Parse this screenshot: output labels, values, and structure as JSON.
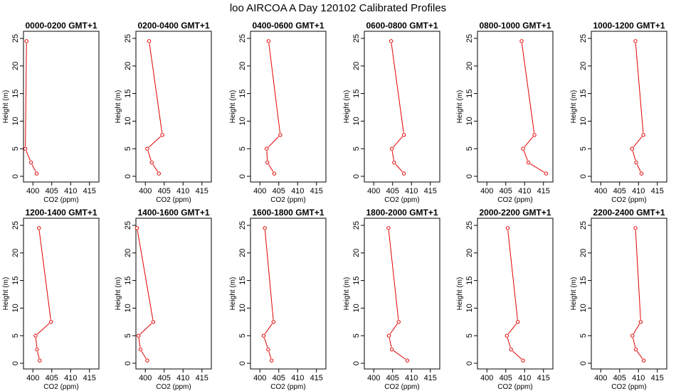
{
  "title": "loo AIRCOA A  Day 120102  Calibrated Profiles",
  "colors": {
    "series": "#e00000",
    "axes": "#000000",
    "background": "#ffffff"
  },
  "chart_data": [
    {
      "type": "line",
      "title": "0000-0200 GMT+1",
      "xlabel": "CO2 (ppm)",
      "ylabel": "Height (m)",
      "xlim": [
        397.5,
        417.5
      ],
      "ylim": [
        0,
        25
      ],
      "xticks": [
        400,
        405,
        410,
        415
      ],
      "yticks": [
        0,
        5,
        10,
        15,
        20,
        25
      ],
      "x": [
        398.3,
        398.0,
        399.5,
        401.0
      ],
      "y": [
        24.5,
        5,
        2.5,
        0.5
      ]
    },
    {
      "type": "line",
      "title": "0200-0400 GMT+1",
      "xlabel": "CO2 (ppm)",
      "ylabel": "Height (m)",
      "xlim": [
        397.5,
        417.5
      ],
      "ylim": [
        0,
        25
      ],
      "xticks": [
        400,
        405,
        410,
        415
      ],
      "yticks": [
        0,
        5,
        10,
        15,
        20,
        25
      ],
      "x": [
        401.0,
        404.5,
        400.5,
        401.7,
        403.6
      ],
      "y": [
        24.5,
        7.5,
        5,
        2.5,
        0.5
      ]
    },
    {
      "type": "line",
      "title": "0400-0600 GMT+1",
      "xlabel": "CO2 (ppm)",
      "ylabel": "Height (m)",
      "xlim": [
        397.5,
        417.5
      ],
      "ylim": [
        0,
        25
      ],
      "xticks": [
        400,
        405,
        410,
        415
      ],
      "yticks": [
        0,
        5,
        10,
        15,
        20,
        25
      ],
      "x": [
        402.3,
        405.4,
        401.8,
        402.0,
        403.8
      ],
      "y": [
        24.5,
        7.5,
        5,
        2.5,
        0.5
      ]
    },
    {
      "type": "line",
      "title": "0600-0800 GMT+1",
      "xlabel": "CO2 (ppm)",
      "ylabel": "Height (m)",
      "xlim": [
        397.5,
        417.5
      ],
      "ylim": [
        0,
        25
      ],
      "xticks": [
        400,
        405,
        410,
        415
      ],
      "yticks": [
        0,
        5,
        10,
        15,
        20,
        25
      ],
      "x": [
        404.6,
        408.0,
        404.8,
        405.4,
        408.0
      ],
      "y": [
        24.5,
        7.5,
        5,
        2.5,
        0.5
      ]
    },
    {
      "type": "line",
      "title": "0800-1000 GMT+1",
      "xlabel": "CO2 (ppm)",
      "ylabel": "Height (m)",
      "xlim": [
        397.5,
        417.5
      ],
      "ylim": [
        0,
        25
      ],
      "xticks": [
        400,
        405,
        410,
        415
      ],
      "yticks": [
        0,
        5,
        10,
        15,
        20,
        25
      ],
      "x": [
        409.2,
        412.6,
        409.6,
        411.0,
        415.7
      ],
      "y": [
        24.5,
        7.5,
        5,
        2.5,
        0.5
      ]
    },
    {
      "type": "line",
      "title": "1000-1200 GMT+1",
      "xlabel": "CO2 (ppm)",
      "ylabel": "Height (m)",
      "xlim": [
        397.5,
        417.5
      ],
      "ylim": [
        0,
        25
      ],
      "xticks": [
        400,
        405,
        410,
        415
      ],
      "yticks": [
        0,
        5,
        10,
        15,
        20,
        25
      ],
      "x": [
        409.2,
        411.3,
        408.3,
        409.4,
        410.8
      ],
      "y": [
        24.5,
        7.5,
        5,
        2.5,
        0.5
      ]
    },
    {
      "type": "line",
      "title": "1200-1400 GMT+1",
      "xlabel": "CO2 (ppm)",
      "ylabel": "Height (m)",
      "xlim": [
        397.5,
        417.5
      ],
      "ylim": [
        0,
        25
      ],
      "xticks": [
        400,
        405,
        410,
        415
      ],
      "yticks": [
        0,
        5,
        10,
        15,
        20,
        25
      ],
      "x": [
        401.6,
        404.8,
        400.7,
        401.1,
        401.8
      ],
      "y": [
        24.5,
        7.5,
        5,
        2.5,
        0.5
      ]
    },
    {
      "type": "line",
      "title": "1400-1600 GMT+1",
      "xlabel": "CO2 (ppm)",
      "ylabel": "Height (m)",
      "xlim": [
        397.5,
        417.5
      ],
      "ylim": [
        0,
        25
      ],
      "xticks": [
        400,
        405,
        410,
        415
      ],
      "yticks": [
        0,
        5,
        10,
        15,
        20,
        25
      ],
      "x": [
        397.8,
        402.1,
        398.2,
        398.7,
        400.5
      ],
      "y": [
        24.5,
        7.5,
        5,
        2.5,
        0.5
      ]
    },
    {
      "type": "line",
      "title": "1600-1800 GMT+1",
      "xlabel": "CO2 (ppm)",
      "ylabel": "Height (m)",
      "xlim": [
        397.5,
        417.5
      ],
      "ylim": [
        0,
        25
      ],
      "xticks": [
        400,
        405,
        410,
        415
      ],
      "yticks": [
        0,
        5,
        10,
        15,
        20,
        25
      ],
      "x": [
        401.3,
        403.6,
        401.0,
        402.2,
        403.1
      ],
      "y": [
        24.5,
        7.5,
        5,
        2.5,
        0.5
      ]
    },
    {
      "type": "line",
      "title": "1800-2000 GMT+1",
      "xlabel": "CO2 (ppm)",
      "ylabel": "Height (m)",
      "xlim": [
        397.5,
        417.5
      ],
      "ylim": [
        0,
        25
      ],
      "xticks": [
        400,
        405,
        410,
        415
      ],
      "yticks": [
        0,
        5,
        10,
        15,
        20,
        25
      ],
      "x": [
        403.9,
        406.6,
        404.0,
        404.8,
        408.9
      ],
      "y": [
        24.5,
        7.5,
        5,
        2.5,
        0.5
      ]
    },
    {
      "type": "line",
      "title": "2000-2200 GMT+1",
      "xlabel": "CO2 (ppm)",
      "ylabel": "Height (m)",
      "xlim": [
        397.5,
        417.5
      ],
      "ylim": [
        0,
        25
      ],
      "xticks": [
        400,
        405,
        410,
        415
      ],
      "yticks": [
        0,
        5,
        10,
        15,
        20,
        25
      ],
      "x": [
        405.5,
        408.2,
        405.3,
        406.4,
        409.6
      ],
      "y": [
        24.5,
        7.5,
        5,
        2.5,
        0.5
      ]
    },
    {
      "type": "line",
      "title": "2200-2400 GMT+1",
      "xlabel": "CO2 (ppm)",
      "ylabel": "Height (m)",
      "xlim": [
        397.5,
        417.5
      ],
      "ylim": [
        0,
        25
      ],
      "xticks": [
        400,
        405,
        410,
        415
      ],
      "yticks": [
        0,
        5,
        10,
        15,
        20,
        25
      ],
      "x": [
        409.2,
        410.6,
        408.4,
        409.3,
        411.4
      ],
      "y": [
        24.5,
        7.5,
        5,
        2.5,
        0.5
      ]
    }
  ]
}
